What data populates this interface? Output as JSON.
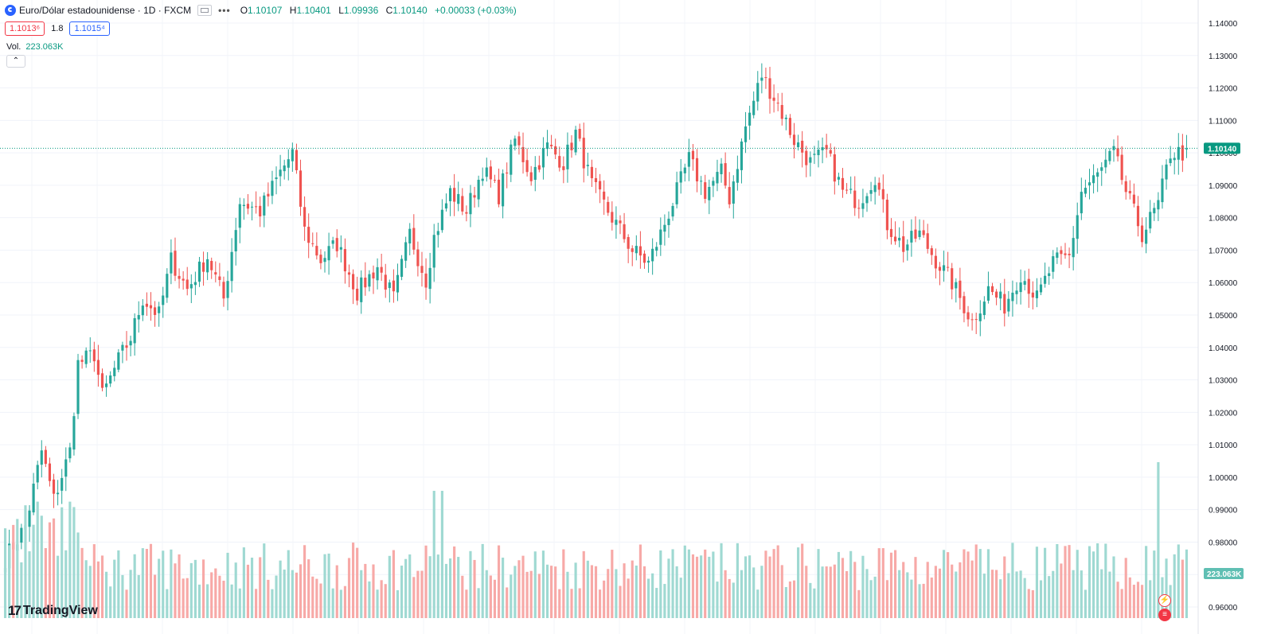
{
  "legend": {
    "title": "Euro/Dólar estadounidense · 1D · FXCM",
    "more": "•••",
    "ohlc": [
      {
        "key": "O",
        "value": "1.10107"
      },
      {
        "key": "H",
        "value": "1.10401"
      },
      {
        "key": "L",
        "value": "1.09936"
      },
      {
        "key": "C",
        "value": "1.10140"
      },
      {
        "key": "",
        "value": "+0.00033 (+0.03%)"
      }
    ]
  },
  "trade": {
    "sell": "1.1013⁶",
    "spread": "1.8",
    "buy": "1.1015⁴"
  },
  "volume": {
    "label": "Vol.",
    "value": "223.063K"
  },
  "collapse_icon": "chevron-up",
  "brand": {
    "mark": "17",
    "name": "TradingView"
  },
  "colors": {
    "up": "#26a69a",
    "down": "#ef5350",
    "vol_up": "#9fd9d2",
    "vol_down": "#f7a9a7",
    "last": "#089981"
  },
  "chart_data": {
    "type": "candlestick",
    "symbol": "EURUSD",
    "timeframe": "1D",
    "ylim": [
      0.955,
      1.143
    ],
    "y_ticks": [
      "1.14000",
      "1.13000",
      "1.12000",
      "1.11000",
      "1.10000",
      "1.09000",
      "1.08000",
      "1.07000",
      "1.06000",
      "1.05000",
      "1.04000",
      "1.03000",
      "1.02000",
      "1.01000",
      "1.00000",
      "0.99000",
      "0.98000",
      "0.97000",
      "0.96000"
    ],
    "last_price_label": "1.10140",
    "last_volume_label": "223.063K",
    "anchors": [
      [
        0,
        0.975
      ],
      [
        5,
        0.985
      ],
      [
        9,
        1.008
      ],
      [
        12,
        0.993
      ],
      [
        16,
        1.008
      ],
      [
        18,
        1.035
      ],
      [
        22,
        1.038
      ],
      [
        24,
        1.025
      ],
      [
        28,
        1.036
      ],
      [
        31,
        1.043
      ],
      [
        34,
        1.055
      ],
      [
        38,
        1.05
      ],
      [
        41,
        1.067
      ],
      [
        45,
        1.058
      ],
      [
        50,
        1.068
      ],
      [
        54,
        1.055
      ],
      [
        58,
        1.085
      ],
      [
        63,
        1.082
      ],
      [
        68,
        1.094
      ],
      [
        71,
        1.1
      ],
      [
        74,
        1.076
      ],
      [
        78,
        1.067
      ],
      [
        82,
        1.072
      ],
      [
        87,
        1.057
      ],
      [
        92,
        1.065
      ],
      [
        96,
        1.055
      ],
      [
        100,
        1.075
      ],
      [
        104,
        1.061
      ],
      [
        106,
        1.074
      ],
      [
        110,
        1.088
      ],
      [
        114,
        1.082
      ],
      [
        118,
        1.095
      ],
      [
        122,
        1.087
      ],
      [
        126,
        1.104
      ],
      [
        130,
        1.093
      ],
      [
        134,
        1.102
      ],
      [
        138,
        1.097
      ],
      [
        141,
        1.106
      ],
      [
        145,
        1.09
      ],
      [
        150,
        1.08
      ],
      [
        155,
        1.07
      ],
      [
        159,
        1.066
      ],
      [
        162,
        1.075
      ],
      [
        166,
        1.088
      ],
      [
        169,
        1.098
      ],
      [
        173,
        1.088
      ],
      [
        177,
        1.094
      ],
      [
        179,
        1.086
      ],
      [
        183,
        1.108
      ],
      [
        187,
        1.124
      ],
      [
        191,
        1.115
      ],
      [
        195,
        1.104
      ],
      [
        199,
        1.097
      ],
      [
        203,
        1.1
      ],
      [
        207,
        1.088
      ],
      [
        211,
        1.085
      ],
      [
        215,
        1.093
      ],
      [
        218,
        1.078
      ],
      [
        222,
        1.071
      ],
      [
        226,
        1.075
      ],
      [
        230,
        1.067
      ],
      [
        234,
        1.06
      ],
      [
        239,
        1.048
      ],
      [
        243,
        1.058
      ],
      [
        247,
        1.053
      ],
      [
        251,
        1.063
      ],
      [
        255,
        1.055
      ],
      [
        259,
        1.066
      ],
      [
        263,
        1.068
      ],
      [
        266,
        1.088
      ],
      [
        270,
        1.093
      ],
      [
        274,
        1.1
      ],
      [
        277,
        1.088
      ],
      [
        281,
        1.075
      ],
      [
        285,
        1.084
      ],
      [
        288,
        1.1
      ],
      [
        291,
        1.1
      ],
      [
        292,
        1.1014
      ]
    ],
    "volume_range": [
      0,
      0.5
    ]
  }
}
